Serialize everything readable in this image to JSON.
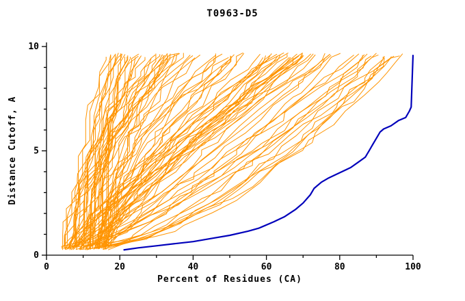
{
  "chart_data": {
    "type": "line",
    "title": "T0963-D5",
    "xlabel": "Percent of Residues (CA)",
    "ylabel": "Distance Cutoff, A",
    "xlim": [
      0,
      100
    ],
    "ylim": [
      0,
      10
    ],
    "grid": false,
    "legend": "none",
    "x_ticks": {
      "major": [
        0,
        20,
        40,
        60,
        80,
        100
      ],
      "minor_step": 10
    },
    "y_ticks": {
      "major": [
        0,
        5,
        10
      ],
      "minor_step": 1
    },
    "axis_color": "#000000",
    "highlight_series": {
      "name": "highlighted-model",
      "color": "#0000bb",
      "points": [
        [
          21,
          0.25
        ],
        [
          25,
          0.35
        ],
        [
          30,
          0.45
        ],
        [
          35,
          0.55
        ],
        [
          40,
          0.65
        ],
        [
          45,
          0.8
        ],
        [
          50,
          0.95
        ],
        [
          55,
          1.15
        ],
        [
          58,
          1.3
        ],
        [
          62,
          1.6
        ],
        [
          65,
          1.85
        ],
        [
          68,
          2.2
        ],
        [
          70,
          2.5
        ],
        [
          72,
          2.9
        ],
        [
          73,
          3.2
        ],
        [
          75,
          3.5
        ],
        [
          77,
          3.7
        ],
        [
          80,
          3.95
        ],
        [
          83,
          4.2
        ],
        [
          85,
          4.45
        ],
        [
          87,
          4.7
        ],
        [
          88,
          5.0
        ],
        [
          89,
          5.3
        ],
        [
          90,
          5.6
        ],
        [
          91,
          5.9
        ],
        [
          92,
          6.05
        ],
        [
          94,
          6.2
        ],
        [
          96,
          6.45
        ],
        [
          98,
          6.6
        ],
        [
          99,
          6.9
        ],
        [
          99.5,
          7.1
        ],
        [
          100,
          9.6
        ]
      ]
    },
    "ensemble_series": {
      "name": "prediction-ensemble",
      "color": "#ff9400",
      "count": 95,
      "seed": 12,
      "start_x_range": [
        4,
        18
      ],
      "start_y": 0.25,
      "top_y_range": [
        9.45,
        9.7
      ],
      "top_x_range": [
        16,
        100
      ]
    }
  }
}
